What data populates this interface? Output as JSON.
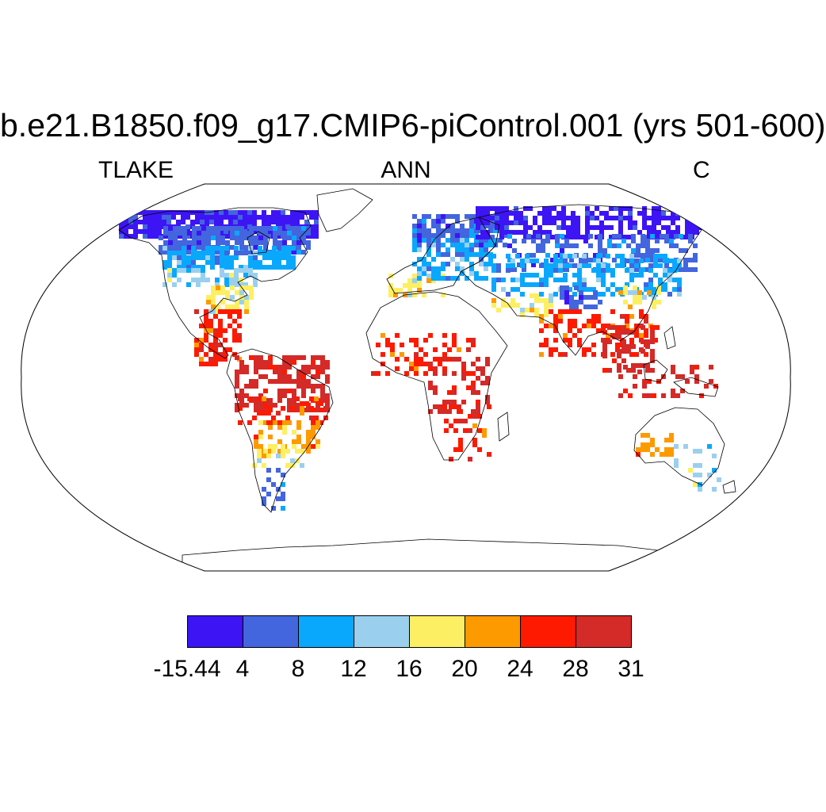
{
  "title": "b.e21.B1850.f09_g17.CMIP6-piControl.001 (yrs 501-600)",
  "left_label": "TLAKE",
  "center_label": "ANN",
  "right_label": "C",
  "colorbar": {
    "labels": [
      "-15.44",
      "4",
      "8",
      "12",
      "16",
      "20",
      "24",
      "28",
      "31"
    ],
    "colors": [
      "#3d15f5",
      "#4365de",
      "#0aa8fc",
      "#9ad0ee",
      "#fdef63",
      "#fd9a00",
      "#fd1a00",
      "#d42a28"
    ]
  }
}
